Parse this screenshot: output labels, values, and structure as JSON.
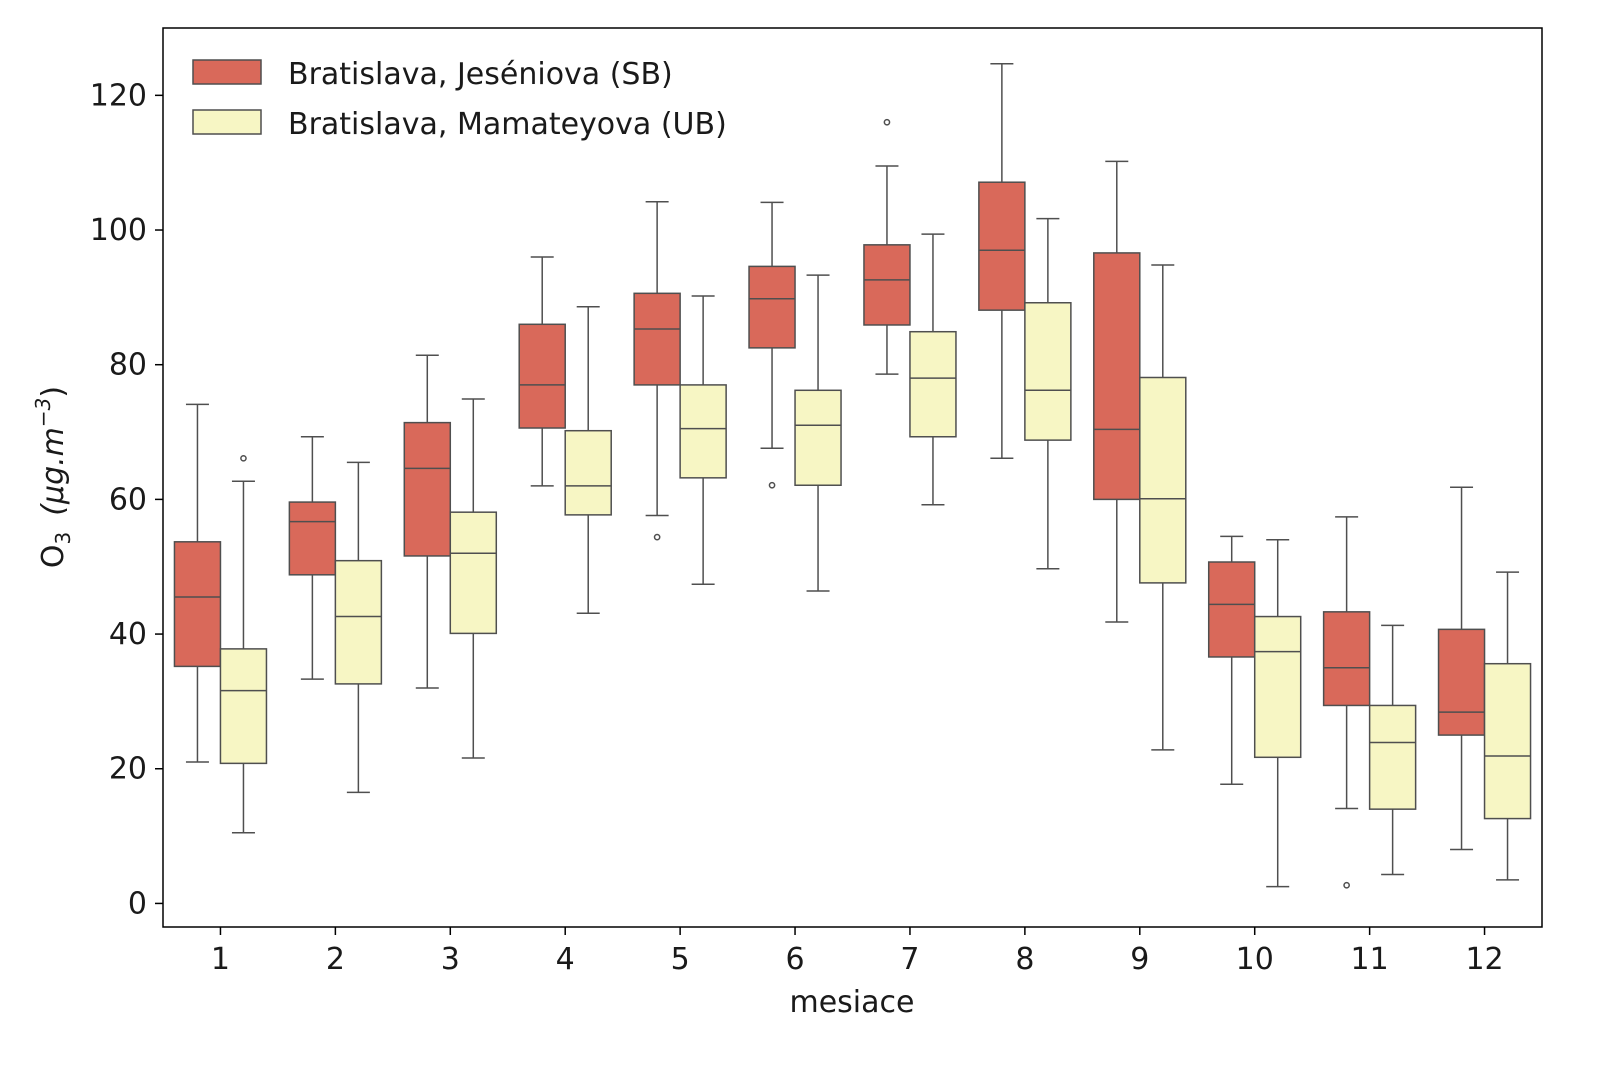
{
  "chart_data": {
    "type": "boxplot",
    "title": "",
    "xlabel": "mesiace",
    "ylabel": {
      "main": "O",
      "sub": "3",
      "unit_prefix": "(μg.m",
      "unit_sup": "−3",
      "unit_suffix": ")"
    },
    "ylim": [
      -3.5,
      130
    ],
    "yticks": [
      0,
      20,
      40,
      60,
      80,
      100,
      120
    ],
    "categories": [
      "1",
      "2",
      "3",
      "4",
      "5",
      "6",
      "7",
      "8",
      "9",
      "10",
      "11",
      "12"
    ],
    "legend_position": "top-left",
    "series": [
      {
        "name": "Bratislava, Jeséniova (SB)",
        "color": "#d9695a",
        "boxes": [
          {
            "whislo": 21,
            "q1": 35.2,
            "med": 45.5,
            "q3": 53.7,
            "whishi": 74.1,
            "fliers": []
          },
          {
            "whislo": 33.3,
            "q1": 48.8,
            "med": 56.7,
            "q3": 59.6,
            "whishi": 69.3,
            "fliers": []
          },
          {
            "whislo": 32,
            "q1": 51.6,
            "med": 64.6,
            "q3": 71.4,
            "whishi": 81.4,
            "fliers": []
          },
          {
            "whislo": 62,
            "q1": 70.6,
            "med": 77,
            "q3": 86,
            "whishi": 96,
            "fliers": []
          },
          {
            "whislo": 57.6,
            "q1": 77,
            "med": 85.3,
            "q3": 90.6,
            "whishi": 104.2,
            "fliers": [
              54.4
            ]
          },
          {
            "whislo": 67.6,
            "q1": 82.5,
            "med": 89.8,
            "q3": 94.6,
            "whishi": 104.1,
            "fliers": [
              62.1
            ]
          },
          {
            "whislo": 78.6,
            "q1": 85.9,
            "med": 92.6,
            "q3": 97.8,
            "whishi": 109.5,
            "fliers": [
              116
            ]
          },
          {
            "whislo": 66.1,
            "q1": 88.1,
            "med": 97,
            "q3": 107.1,
            "whishi": 124.7,
            "fliers": []
          },
          {
            "whislo": 41.8,
            "q1": 60,
            "med": 70.4,
            "q3": 96.6,
            "whishi": 110.2,
            "fliers": []
          },
          {
            "whislo": 17.7,
            "q1": 36.6,
            "med": 44.4,
            "q3": 50.7,
            "whishi": 54.5,
            "fliers": []
          },
          {
            "whislo": 14.1,
            "q1": 29.4,
            "med": 35,
            "q3": 43.3,
            "whishi": 57.4,
            "fliers": [
              2.7
            ]
          },
          {
            "whislo": 8,
            "q1": 25,
            "med": 28.4,
            "q3": 40.7,
            "whishi": 61.8,
            "fliers": []
          }
        ]
      },
      {
        "name": "Bratislava, Mamateyova (UB)",
        "color": "#f7f6c4",
        "boxes": [
          {
            "whislo": 10.5,
            "q1": 20.8,
            "med": 31.6,
            "q3": 37.8,
            "whishi": 62.7,
            "fliers": [
              66.1
            ]
          },
          {
            "whislo": 16.5,
            "q1": 32.6,
            "med": 42.6,
            "q3": 50.9,
            "whishi": 65.5,
            "fliers": []
          },
          {
            "whislo": 21.6,
            "q1": 40.1,
            "med": 52,
            "q3": 58.1,
            "whishi": 74.9,
            "fliers": []
          },
          {
            "whislo": 43.1,
            "q1": 57.7,
            "med": 62,
            "q3": 70.2,
            "whishi": 88.6,
            "fliers": []
          },
          {
            "whislo": 47.4,
            "q1": 63.2,
            "med": 70.5,
            "q3": 77,
            "whishi": 90.2,
            "fliers": []
          },
          {
            "whislo": 46.4,
            "q1": 62.1,
            "med": 71,
            "q3": 76.2,
            "whishi": 93.3,
            "fliers": []
          },
          {
            "whislo": 59.2,
            "q1": 69.3,
            "med": 78,
            "q3": 84.9,
            "whishi": 99.4,
            "fliers": []
          },
          {
            "whislo": 49.7,
            "q1": 68.8,
            "med": 76.2,
            "q3": 89.2,
            "whishi": 101.7,
            "fliers": []
          },
          {
            "whislo": 22.8,
            "q1": 47.6,
            "med": 60.1,
            "q3": 78.1,
            "whishi": 94.8,
            "fliers": []
          },
          {
            "whislo": 2.5,
            "q1": 21.7,
            "med": 37.4,
            "q3": 42.6,
            "whishi": 54,
            "fliers": []
          },
          {
            "whislo": 4.3,
            "q1": 14,
            "med": 23.9,
            "q3": 29.4,
            "whishi": 41.3,
            "fliers": []
          },
          {
            "whislo": 3.5,
            "q1": 12.6,
            "med": 21.9,
            "q3": 35.6,
            "whishi": 49.2,
            "fliers": []
          }
        ]
      }
    ]
  },
  "style": {
    "line_color": "#4f4f4f",
    "axis_color": "#000000"
  }
}
